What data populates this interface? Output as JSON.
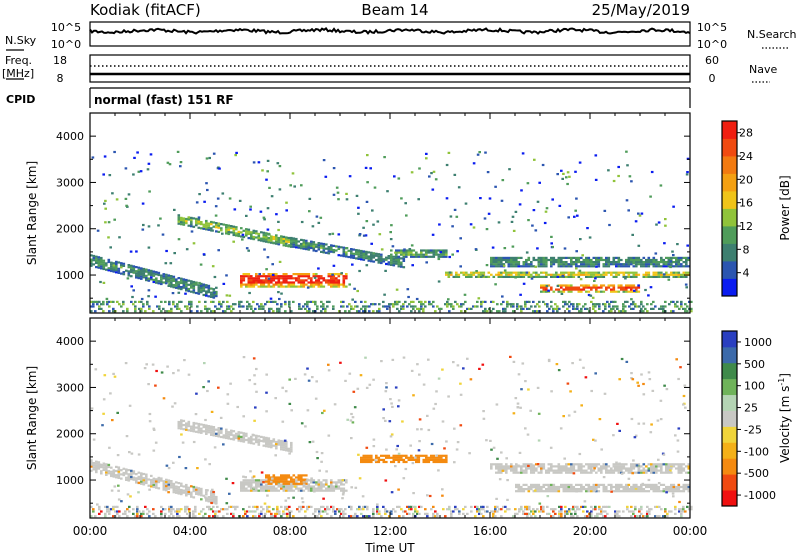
{
  "header": {
    "station": "Kodiak (fitACF)",
    "beam": "Beam 14",
    "date": "25/May/2019"
  },
  "noise_panel": {
    "left_label": "N.Sky",
    "right_label": "N.Search",
    "left_ticks": [
      "10^5",
      "10^0"
    ],
    "right_ticks": [
      "10^5",
      "10^0"
    ]
  },
  "freq_panel": {
    "left_label_line1": "Freq.",
    "left_label_line2": "[MHz]",
    "left_ticks": [
      "18",
      "8"
    ],
    "right_label": "Nave",
    "right_ticks": [
      "60",
      "0"
    ]
  },
  "cpid_panel": {
    "label": "CPID",
    "value": "normal (fast) 151 RF"
  },
  "colors": {
    "power_scale": [
      "#0a1cf0",
      "#2b55b0",
      "#3d7f70",
      "#4f9c5a",
      "#90c33a",
      "#f0c419",
      "#f4a012",
      "#f27a10",
      "#f04a10",
      "#f01e10"
    ],
    "velocity_scale": [
      "#f01010",
      "#f04a10",
      "#f48a10",
      "#f4b018",
      "#f0d43a",
      "#c8c8c4",
      "#b4d4b4",
      "#6fb35a",
      "#3f8a4a",
      "#3c6aaa",
      "#2a3fc0"
    ],
    "ground_scatter": "#c8c8c4"
  },
  "chart_data": [
    {
      "type": "heatmap",
      "title": "Power",
      "ylabel": "Slant Range [km]",
      "xlim": [
        "00:00",
        "24:00"
      ],
      "ylim": [
        180,
        4500
      ],
      "yticks": [
        "1000",
        "2000",
        "3000",
        "4000"
      ],
      "colorbar": {
        "label": "Power [dB]",
        "ticks": [
          "4",
          "8",
          "12",
          "16",
          "20",
          "24",
          "28"
        ],
        "range": [
          0,
          30
        ]
      },
      "features": [
        {
          "label": "band",
          "t_start": 0.0,
          "t_end": 5.0,
          "range_start": 1300,
          "range_end": 600,
          "width": 240,
          "power": 10
        },
        {
          "label": "strong echo",
          "t_start": 6.0,
          "t_end": 10.2,
          "range_center": 880,
          "width": 300,
          "power": 28
        },
        {
          "label": "band",
          "t_start": 3.5,
          "t_end": 8.0,
          "range_start": 2200,
          "range_end": 1700,
          "width": 220,
          "power": 14
        },
        {
          "label": "band",
          "t_start": 8.0,
          "t_end": 12.5,
          "range_start": 1700,
          "range_end": 1250,
          "width": 200,
          "power": 10
        },
        {
          "label": "band",
          "t_start": 12.0,
          "t_end": 14.2,
          "range_center": 1450,
          "width": 150,
          "power": 12
        },
        {
          "label": "band",
          "t_start": 16.0,
          "t_end": 24.0,
          "range_center": 1280,
          "width": 220,
          "power": 10
        },
        {
          "label": "strong echo",
          "t_start": 18.0,
          "t_end": 22.0,
          "range_center": 700,
          "width": 160,
          "power": 26
        },
        {
          "label": "ground band",
          "t_start": 14.2,
          "t_end": 24.0,
          "range_center": 1000,
          "width": 120,
          "power": 18
        }
      ]
    },
    {
      "type": "heatmap",
      "title": "Velocity",
      "xlabel": "Time UT",
      "ylabel": "Slant Range [km]",
      "xlim": [
        "00:00",
        "24:00"
      ],
      "xticks": [
        "00:00",
        "04:00",
        "08:00",
        "12:00",
        "16:00",
        "20:00",
        "00:00"
      ],
      "ylim": [
        180,
        4500
      ],
      "yticks": [
        "1000",
        "2000",
        "3000",
        "4000"
      ],
      "colorbar": {
        "label": "Velocity [m s^-1]",
        "ticks": [
          "1000",
          "500",
          "100",
          "25",
          "-25",
          "-100",
          "-500",
          "-1000"
        ]
      },
      "features": [
        {
          "label": "ground scatter",
          "t_start": 0.0,
          "t_end": 5.0,
          "range_start": 1300,
          "range_end": 600,
          "width": 240,
          "velocity": 0
        },
        {
          "label": "ground scatter",
          "t_start": 3.5,
          "t_end": 8.0,
          "range_start": 2200,
          "range_end": 1700,
          "width": 200,
          "velocity": 0
        },
        {
          "label": "ground scatter",
          "t_start": 6.0,
          "t_end": 10.2,
          "range_center": 880,
          "width": 260,
          "velocity": 0
        },
        {
          "label": "receding echo",
          "t_start": 7.0,
          "t_end": 8.6,
          "range_center": 1000,
          "width": 200,
          "velocity": -150
        },
        {
          "label": "receding echo",
          "t_start": 10.8,
          "t_end": 14.2,
          "range_center": 1450,
          "width": 160,
          "velocity": -200
        },
        {
          "label": "ground scatter",
          "t_start": 16.0,
          "t_end": 24.0,
          "range_center": 1250,
          "width": 220,
          "velocity": 0
        },
        {
          "label": "ground scatter",
          "t_start": 17.0,
          "t_end": 24.0,
          "range_center": 820,
          "width": 160,
          "velocity": 0
        }
      ]
    }
  ]
}
